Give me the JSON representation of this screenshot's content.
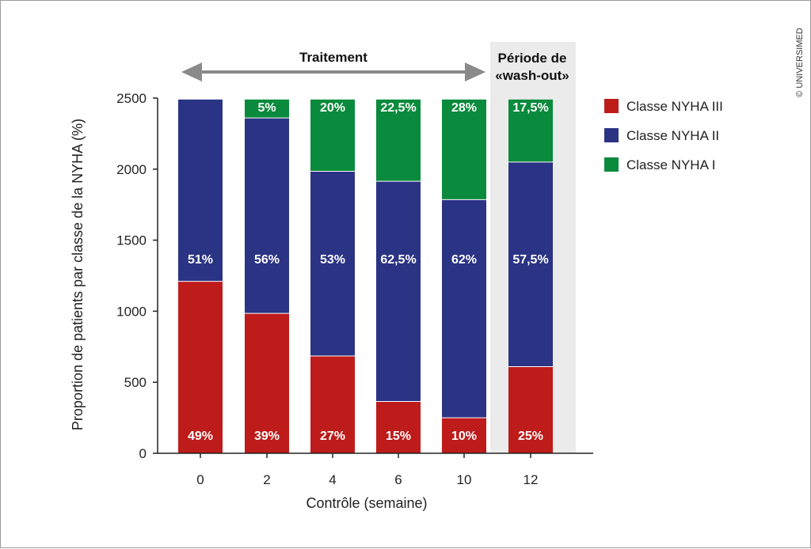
{
  "chart_data": {
    "type": "bar",
    "stacked": true,
    "xlabel": "Contrôle (semaine)",
    "ylabel": "Proportion de patients par classe de la NYHA (%)",
    "ylim": [
      0,
      2500
    ],
    "yticks": [
      0,
      500,
      1000,
      1500,
      2000,
      2500
    ],
    "categories": [
      "0",
      "2",
      "4",
      "6",
      "10",
      "12"
    ],
    "series": [
      {
        "name": "Classe NYHA III",
        "color": "#be1b1b",
        "values": [
          1210,
          985,
          685,
          365,
          250,
          610
        ],
        "labels": [
          "49%",
          "39%",
          "27%",
          "15%",
          "10%",
          "25%"
        ]
      },
      {
        "name": "Classe NYHA II",
        "color": "#2a3384",
        "values": [
          1280,
          1375,
          1300,
          1550,
          1535,
          1440
        ],
        "labels": [
          "51%",
          "56%",
          "53%",
          "62,5%",
          "62%",
          "57,5%"
        ]
      },
      {
        "name": "Classe NYHA I",
        "color": "#0a8a3c",
        "values": [
          0,
          130,
          505,
          575,
          705,
          440
        ],
        "labels": [
          "",
          "5%",
          "20%",
          "22,5%",
          "28%",
          "17,5%"
        ]
      }
    ],
    "legend_position": "right",
    "grid": false,
    "annotations": {
      "treatment_label": "Traitement",
      "washout_label_line1": "Période de",
      "washout_label_line2": "«wash-out»"
    }
  },
  "credit": "© UNIVERSIMED",
  "colors": {
    "axis": "#222222",
    "arrow": "#8a8a8a",
    "washout_band": "#ebebeb"
  }
}
